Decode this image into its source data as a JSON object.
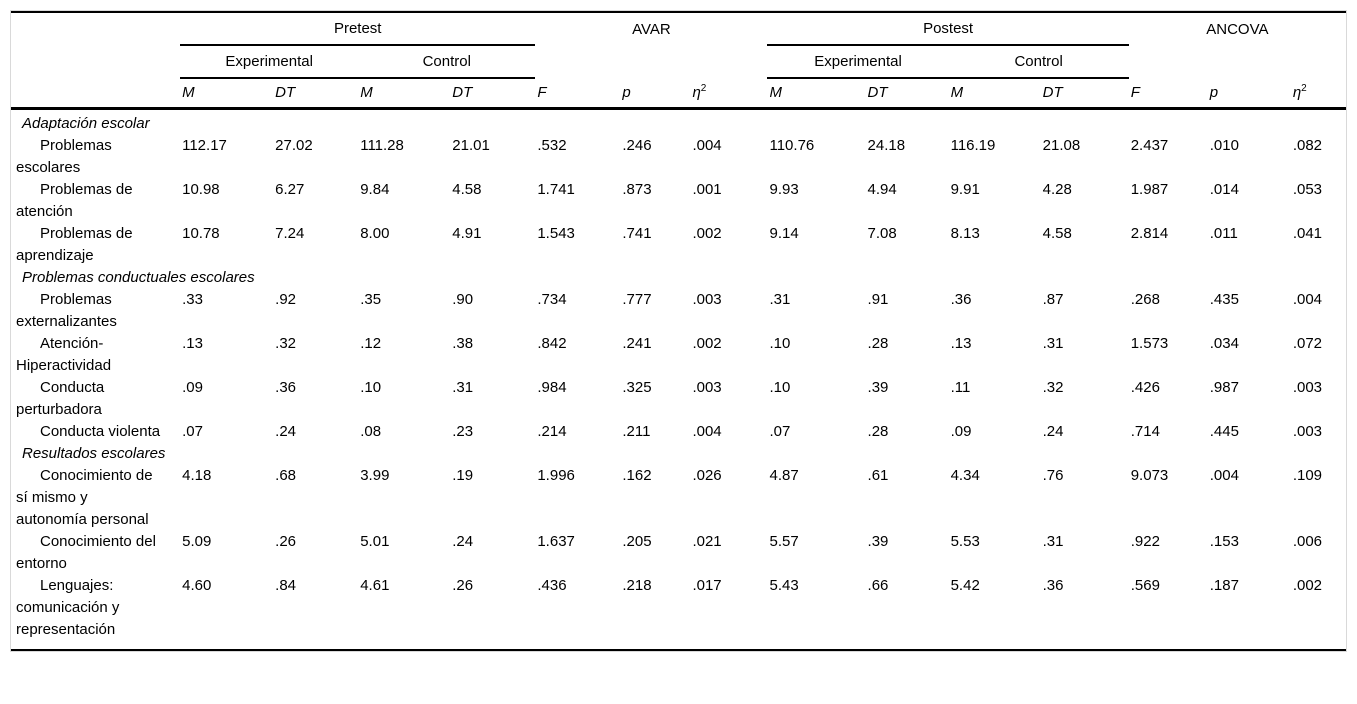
{
  "table": {
    "header": {
      "groups": [
        {
          "label": "Pretest"
        },
        {
          "label": "AVAR"
        },
        {
          "label": "Postest"
        },
        {
          "label": "ANCOVA"
        }
      ],
      "subgroups": [
        "Experimental",
        "Control",
        "Experimental",
        "Control"
      ],
      "stats": {
        "m": "M",
        "dt": "DT",
        "f": "F",
        "p": "p",
        "eta_base": "η",
        "eta_sup": "2"
      }
    },
    "rows": [
      {
        "type": "section",
        "label": "Adaptación escolar"
      },
      {
        "type": "entry",
        "label": "Problemas escolares",
        "values": [
          "112.17",
          "27.02",
          "111.28",
          "21.01",
          ".532",
          ".246",
          ".004",
          "110.76",
          "24.18",
          "116.19",
          "21.08",
          "2.437",
          ".010",
          ".082"
        ]
      },
      {
        "type": "entry",
        "label": "Problemas de atención",
        "values": [
          "10.98",
          "6.27",
          "9.84",
          "4.58",
          "1.741",
          ".873",
          ".001",
          "9.93",
          "4.94",
          "9.91",
          "4.28",
          "1.987",
          ".014",
          ".053"
        ]
      },
      {
        "type": "entry",
        "label": "Problemas de aprendizaje",
        "values": [
          "10.78",
          "7.24",
          "8.00",
          "4.91",
          "1.543",
          ".741",
          ".002",
          "9.14",
          "7.08",
          "8.13",
          "4.58",
          "2.814",
          ".011",
          ".041"
        ]
      },
      {
        "type": "section",
        "label": "Problemas conductuales escolares"
      },
      {
        "type": "entry",
        "label": "Problemas externalizantes",
        "values": [
          ".33",
          ".92",
          ".35",
          ".90",
          ".734",
          ".777",
          ".003",
          ".31",
          ".91",
          ".36",
          ".87",
          ".268",
          ".435",
          ".004"
        ]
      },
      {
        "type": "entry",
        "label": "Atención-Hiperactividad",
        "values": [
          ".13",
          ".32",
          ".12",
          ".38",
          ".842",
          ".241",
          ".002",
          ".10",
          ".28",
          ".13",
          ".31",
          "1.573",
          ".034",
          ".072"
        ]
      },
      {
        "type": "entry",
        "label": "Conducta perturbadora",
        "values": [
          ".09",
          ".36",
          ".10",
          ".31",
          ".984",
          ".325",
          ".003",
          ".10",
          ".39",
          ".11",
          ".32",
          ".426",
          ".987",
          ".003"
        ]
      },
      {
        "type": "entry",
        "label": "Conducta violenta",
        "values": [
          ".07",
          ".24",
          ".08",
          ".23",
          ".214",
          ".211",
          ".004",
          ".07",
          ".28",
          ".09",
          ".24",
          ".714",
          ".445",
          ".003"
        ]
      },
      {
        "type": "section",
        "label": "Resultados escolares"
      },
      {
        "type": "entry",
        "label": "Conocimiento de sí mismo y autonomía personal",
        "values": [
          "4.18",
          ".68",
          "3.99",
          ".19",
          "1.996",
          ".162",
          ".026",
          "4.87",
          ".61",
          "4.34",
          ".76",
          "9.073",
          ".004",
          ".109"
        ]
      },
      {
        "type": "entry",
        "label": "Conocimiento del entorno",
        "values": [
          "5.09",
          ".26",
          "5.01",
          ".24",
          "1.637",
          ".205",
          ".021",
          "5.57",
          ".39",
          "5.53",
          ".31",
          ".922",
          ".153",
          ".006"
        ]
      },
      {
        "type": "entry",
        "label": "Lenguajes: comunicación y representación",
        "values": [
          "4.60",
          ".84",
          "4.61",
          ".26",
          ".436",
          ".218",
          ".017",
          "5.43",
          ".66",
          "5.42",
          ".36",
          ".569",
          ".187",
          ".002"
        ]
      }
    ]
  },
  "colors": {
    "text": "#000000",
    "rule": "#000000",
    "frame_border": "#d9d9d9",
    "background": "#ffffff"
  }
}
